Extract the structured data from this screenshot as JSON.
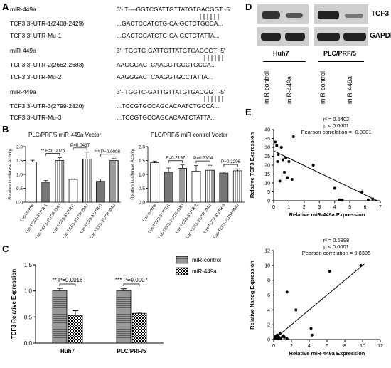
{
  "panels": {
    "A": "A",
    "B": "B",
    "C": "C",
    "D": "D",
    "E": "E"
  },
  "panelA": {
    "rows": [
      {
        "name": "miR-449a",
        "seq": "3'- T----GGTCGATTGTTATGTGACGGT -5'"
      },
      {
        "name": "TCF3 3'-UTR-1(2408-2429)",
        "seq": "...GACTCCATCTG-CA-GCTCTGCCA..."
      },
      {
        "name": "TCF3 3'-UTR-Mu-1",
        "seq": "...GACTCCATCTG-CA-GCTCTATTA..."
      },
      {
        "name": "miR-449a",
        "seq": "3'- TGGTC-GATTGTTATGTGACGGT -5'"
      },
      {
        "name": "TCF3 3'-UTR-2(2662-2683)",
        "seq": "AAGGGACTCAAGGTGCCTGCCA..."
      },
      {
        "name": "TCF3 3'-UTR-Mu-2",
        "seq": "AAGGGACTCAAGGTGCCTATTA..."
      },
      {
        "name": "miR-449a",
        "seq": "3'- TGGTC-GATTGTTATGTGACGGT -5'"
      },
      {
        "name": "TCF3 3'-UTR-3(2799-2820)",
        "seq": "...TCCGTGCCAGCACAATCTGCCA..."
      },
      {
        "name": "TCF3 3'-UTR-Mu-3",
        "seq": "...TCCGTGCCAGCACAATCTATTA..."
      }
    ]
  },
  "chart_data": [
    {
      "id": "B-left",
      "type": "bar",
      "title": "PLC/PRF/5   miR-449a Vector",
      "ylabel": "Relative Luciferase Activity",
      "categories": [
        "Luc-control",
        "Luc-TCF3-3'UTR-1",
        "Luc-TCF3-3'UTR-1MU",
        "Luc-TCF3-3'UTR-2",
        "Luc-TCF3-3'UTR-2MU",
        "Luc-TCF3-3'UTR-3",
        "Luc-TCF3-3'UTR-3MU"
      ],
      "values": [
        1.45,
        0.72,
        1.5,
        0.82,
        1.55,
        0.75,
        1.5
      ],
      "errors": [
        0.06,
        0.06,
        0.1,
        0.02,
        0.25,
        0.08,
        0.07
      ],
      "ylim": [
        0,
        2.0
      ],
      "yticks": [
        "0.0",
        "0.5",
        "1.0",
        "1.5",
        "2.0"
      ],
      "annotations": [
        {
          "text": "** P=0.0026",
          "from": 1,
          "to": 2
        },
        {
          "text": "P=0.0437",
          "from": 3,
          "to": 4
        },
        {
          "text": "*** P=0.0008",
          "from": 5,
          "to": 6
        }
      ]
    },
    {
      "id": "B-right",
      "type": "bar",
      "title": "PLC/PRF/5   miR-control Vector",
      "ylabel": "Relative Luciferase Activity",
      "categories": [
        "Luc-control",
        "Luc-TCF3-3'UTR-1",
        "Luc-TCF3-3'UTR-1MU",
        "Luc-TCF3-3'UTR-2",
        "Luc-TCF3-3'UTR-2MU",
        "Luc-TCF3-3'UTR-3",
        "Luc-TCF3-3'UTR-3MU"
      ],
      "values": [
        1.42,
        1.08,
        1.22,
        1.12,
        1.15,
        1.05,
        1.13
      ],
      "errors": [
        0.06,
        0.15,
        0.12,
        0.2,
        0.18,
        0.04,
        0.07
      ],
      "ylim": [
        0,
        2.0
      ],
      "yticks": [
        "0.0",
        "0.5",
        "1.0",
        "1.5",
        "2.0"
      ],
      "annotations": [
        {
          "text": "P=0.2197",
          "from": 1,
          "to": 2
        },
        {
          "text": "P=0.7304",
          "from": 3,
          "to": 4
        },
        {
          "text": "P=0.2296",
          "from": 5,
          "to": 6
        }
      ]
    },
    {
      "id": "C",
      "type": "bar",
      "ylabel": "TCF3 Relative Expression",
      "categories": [
        "Huh7",
        "PLC/PRF/5"
      ],
      "series": [
        {
          "name": "miR-control",
          "values": [
            1.0,
            1.0
          ],
          "errors": [
            0.05,
            0.04
          ]
        },
        {
          "name": "miR-449a",
          "values": [
            0.53,
            0.57
          ],
          "errors": [
            0.09,
            0.02
          ]
        }
      ],
      "ylim": [
        0,
        1.5
      ],
      "yticks": [
        "0.0",
        "0.5",
        "1.0",
        "1.5"
      ],
      "annotations": [
        {
          "text": "** P=0.0016",
          "group": 0
        },
        {
          "text": "*** P=0.0007",
          "group": 1
        }
      ]
    },
    {
      "id": "E-top",
      "type": "scatter",
      "xlabel": "Relative miR-449a Expression",
      "ylabel": "Relative TCF3 Expression",
      "xlim": [
        0,
        7
      ],
      "ylim": [
        0,
        40
      ],
      "xticks": [
        "0",
        "1",
        "2",
        "3",
        "4",
        "5",
        "6",
        "7"
      ],
      "yticks": [
        "0",
        "5",
        "10",
        "15",
        "20",
        "25",
        "30",
        "35",
        "40"
      ],
      "stats": [
        "r² = 0.6402",
        "p < 0.0001",
        "Pearson correlation = -0.8001"
      ],
      "points": [
        [
          0.1,
          33
        ],
        [
          0.2,
          31
        ],
        [
          0.25,
          22
        ],
        [
          0.3,
          26
        ],
        [
          0.4,
          11
        ],
        [
          0.5,
          30
        ],
        [
          0.6,
          23
        ],
        [
          0.7,
          16
        ],
        [
          0.8,
          24
        ],
        [
          0.9,
          13
        ],
        [
          1.0,
          22
        ],
        [
          1.2,
          12
        ],
        [
          1.3,
          36
        ],
        [
          2.6,
          20
        ],
        [
          4.0,
          7
        ],
        [
          4.3,
          0.5
        ],
        [
          4.5,
          0.3
        ],
        [
          5.8,
          5
        ],
        [
          6.2,
          0.5
        ],
        [
          6.5,
          1
        ]
      ],
      "fit": [
        [
          0,
          28
        ],
        [
          6.8,
          -2
        ]
      ]
    },
    {
      "id": "E-bottom",
      "type": "scatter",
      "xlabel": "Relative miR-449a Expression",
      "ylabel": "Relative Nanog Expression",
      "xlim": [
        0,
        12
      ],
      "ylim": [
        0,
        12
      ],
      "xticks": [
        "0",
        "2",
        "4",
        "6",
        "8",
        "10",
        "12"
      ],
      "yticks": [
        "0",
        "2",
        "4",
        "6",
        "8",
        "10",
        "12"
      ],
      "stats": [
        "r² = 0.6898",
        "p < 0.0001",
        "Pearson correlation = 0.8305"
      ],
      "points": [
        [
          0.1,
          0.1
        ],
        [
          0.2,
          0.4
        ],
        [
          0.3,
          0.2
        ],
        [
          0.4,
          0.6
        ],
        [
          0.5,
          0.1
        ],
        [
          0.6,
          0.3
        ],
        [
          0.7,
          0.8
        ],
        [
          0.8,
          0.2
        ],
        [
          1.0,
          0.4
        ],
        [
          1.1,
          0.5
        ],
        [
          1.2,
          0.3
        ],
        [
          1.5,
          6.4
        ],
        [
          1.5,
          0.1
        ],
        [
          2.5,
          4.0
        ],
        [
          4.2,
          1.5
        ],
        [
          4.3,
          0.6
        ],
        [
          6.3,
          9.2
        ],
        [
          9.8,
          10.0
        ]
      ],
      "fit": [
        [
          0,
          0
        ],
        [
          10.2,
          10.2
        ]
      ]
    }
  ],
  "panelD": {
    "label_tcf3": "TCF3",
    "label_gapdh": "GAPDH",
    "cell_lines": [
      "Huh7",
      "PLC/PRF/5"
    ],
    "lanes": [
      "miR-control",
      "miR-449a",
      "miR-control",
      "miR-449a"
    ]
  }
}
